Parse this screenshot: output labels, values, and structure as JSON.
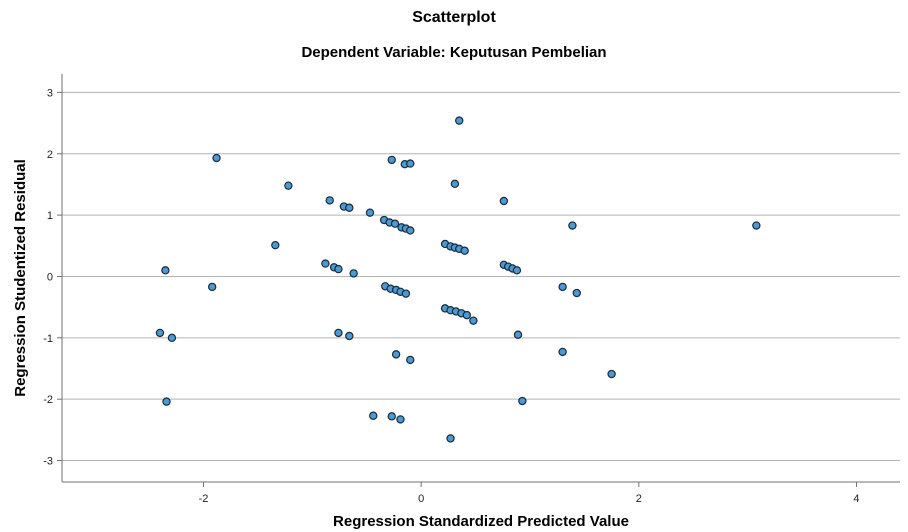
{
  "chart_data": {
    "type": "scatter",
    "title": "Scatterplot",
    "subtitle": "Dependent Variable: Keputusan Pembelian",
    "xlabel": "Regression Standardized Predicted Value",
    "ylabel": "Regression Studentized Residual",
    "xlim": [
      -3.3,
      4.4
    ],
    "ylim": [
      -3.35,
      3.3
    ],
    "x_ticks": [
      -2,
      0,
      2,
      4
    ],
    "y_ticks": [
      3,
      2,
      1,
      0,
      -1,
      -2,
      -3
    ],
    "grid": "horizontal",
    "legend": "none",
    "point_color": "#4a9ad4",
    "point_edge_color": "#1a2a3a",
    "points": [
      {
        "x": 0.35,
        "y": 2.54
      },
      {
        "x": -1.88,
        "y": 1.93
      },
      {
        "x": -0.27,
        "y": 1.9
      },
      {
        "x": -0.15,
        "y": 1.83
      },
      {
        "x": -0.1,
        "y": 1.84
      },
      {
        "x": 0.31,
        "y": 1.51
      },
      {
        "x": -1.22,
        "y": 1.48
      },
      {
        "x": 0.76,
        "y": 1.23
      },
      {
        "x": -0.84,
        "y": 1.24
      },
      {
        "x": -0.71,
        "y": 1.14
      },
      {
        "x": -0.66,
        "y": 1.12
      },
      {
        "x": -0.47,
        "y": 1.04
      },
      {
        "x": -0.34,
        "y": 0.92
      },
      {
        "x": -0.29,
        "y": 0.88
      },
      {
        "x": -0.24,
        "y": 0.86
      },
      {
        "x": -0.18,
        "y": 0.8
      },
      {
        "x": -0.14,
        "y": 0.78
      },
      {
        "x": -0.1,
        "y": 0.75
      },
      {
        "x": 1.39,
        "y": 0.83
      },
      {
        "x": 3.08,
        "y": 0.83
      },
      {
        "x": 0.22,
        "y": 0.53
      },
      {
        "x": 0.27,
        "y": 0.49
      },
      {
        "x": 0.31,
        "y": 0.47
      },
      {
        "x": 0.35,
        "y": 0.45
      },
      {
        "x": 0.4,
        "y": 0.42
      },
      {
        "x": -1.34,
        "y": 0.51
      },
      {
        "x": -0.88,
        "y": 0.21
      },
      {
        "x": -0.8,
        "y": 0.15
      },
      {
        "x": -0.76,
        "y": 0.12
      },
      {
        "x": -0.62,
        "y": 0.05
      },
      {
        "x": 0.76,
        "y": 0.19
      },
      {
        "x": 0.8,
        "y": 0.16
      },
      {
        "x": 0.84,
        "y": 0.13
      },
      {
        "x": 0.88,
        "y": 0.1
      },
      {
        "x": -2.35,
        "y": 0.1
      },
      {
        "x": -1.92,
        "y": -0.17
      },
      {
        "x": -0.33,
        "y": -0.16
      },
      {
        "x": -0.28,
        "y": -0.2
      },
      {
        "x": -0.23,
        "y": -0.22
      },
      {
        "x": -0.19,
        "y": -0.25
      },
      {
        "x": -0.14,
        "y": -0.28
      },
      {
        "x": 1.3,
        "y": -0.17
      },
      {
        "x": 1.43,
        "y": -0.27
      },
      {
        "x": 0.22,
        "y": -0.52
      },
      {
        "x": 0.27,
        "y": -0.55
      },
      {
        "x": 0.32,
        "y": -0.57
      },
      {
        "x": 0.37,
        "y": -0.6
      },
      {
        "x": 0.42,
        "y": -0.63
      },
      {
        "x": 0.48,
        "y": -0.72
      },
      {
        "x": -2.4,
        "y": -0.92
      },
      {
        "x": -2.29,
        "y": -1.0
      },
      {
        "x": -0.76,
        "y": -0.92
      },
      {
        "x": -0.66,
        "y": -0.97
      },
      {
        "x": 0.89,
        "y": -0.95
      },
      {
        "x": -0.23,
        "y": -1.27
      },
      {
        "x": -0.1,
        "y": -1.36
      },
      {
        "x": 1.3,
        "y": -1.23
      },
      {
        "x": 1.75,
        "y": -1.59
      },
      {
        "x": -2.34,
        "y": -2.04
      },
      {
        "x": 0.93,
        "y": -2.03
      },
      {
        "x": -0.44,
        "y": -2.27
      },
      {
        "x": -0.27,
        "y": -2.28
      },
      {
        "x": -0.19,
        "y": -2.33
      },
      {
        "x": 0.27,
        "y": -2.64
      }
    ]
  }
}
